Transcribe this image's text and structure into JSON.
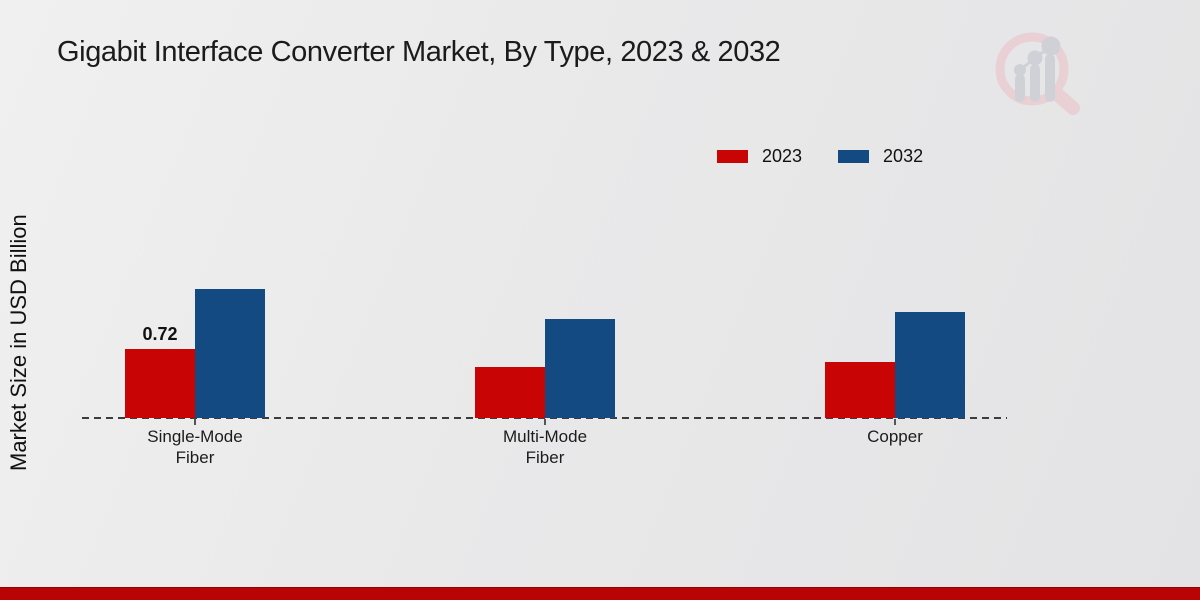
{
  "title": "Gigabit Interface Converter Market, By Type, 2023 & 2032",
  "ylabel": "Market Size in USD Billion",
  "colors": {
    "series_2023": "#c80404",
    "series_2032": "#134a81",
    "footer_band": "#b80404",
    "axis_line": "#3c3c3c",
    "logo_ring_pink": "#eacdd1",
    "logo_bars_gray": "#cbced4"
  },
  "brand": {
    "logo_icon": "magnifier-bar-chart-logo"
  },
  "legend": {
    "items": [
      {
        "label": "2023"
      },
      {
        "label": "2032"
      }
    ]
  },
  "category_label_lines": [
    [
      "Single-Mode",
      "Fiber"
    ],
    [
      "Multi-Mode",
      "Fiber"
    ],
    [
      "Copper"
    ]
  ],
  "chart_data": {
    "type": "bar",
    "title": "Gigabit Interface Converter Market, By Type, 2023 & 2032",
    "categories": [
      "Single-Mode Fiber",
      "Multi-Mode Fiber",
      "Copper"
    ],
    "series": [
      {
        "name": "2023",
        "color": "#c80404",
        "values": [
          0.72,
          0.53,
          0.59
        ],
        "data_labels": [
          "0.72",
          "",
          ""
        ]
      },
      {
        "name": "2032",
        "color": "#134a81",
        "values": [
          1.35,
          1.04,
          1.11
        ],
        "data_labels": [
          "",
          "",
          ""
        ]
      }
    ],
    "xlabel": "",
    "ylabel": "Market Size in USD Billion",
    "ylim": [
      0,
      1.6
    ],
    "grid": false,
    "y_axis_ticks_visible": false,
    "baseline_style": "dashed",
    "legend_position": "top-right"
  }
}
